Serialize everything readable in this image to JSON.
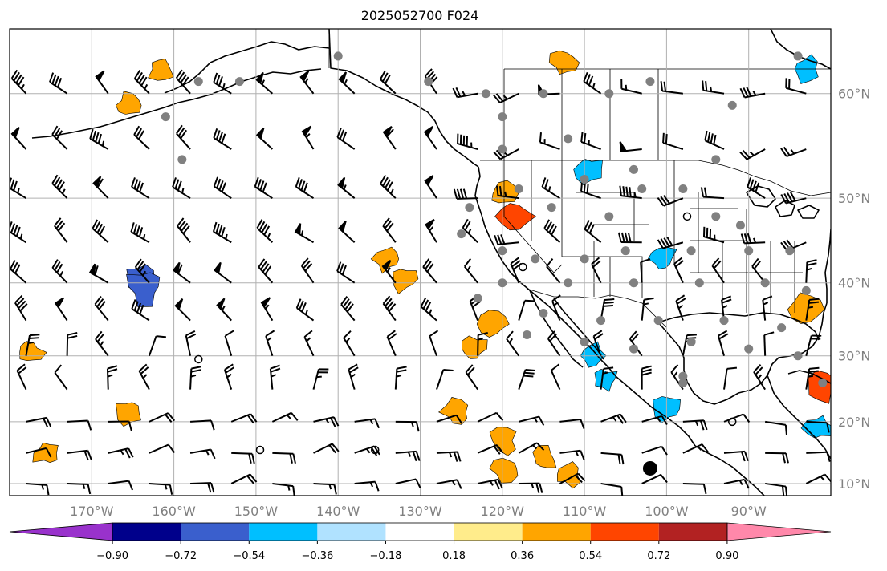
{
  "chart_data": {
    "type": "map",
    "title": "2025052700 F024",
    "projection": "Mercator",
    "extent": {
      "lon": [
        -180,
        -80
      ],
      "lat": [
        8,
        65
      ]
    },
    "longitude_ticks": [
      {
        "lon": -170,
        "label": "170°W"
      },
      {
        "lon": -160,
        "label": "160°W"
      },
      {
        "lon": -150,
        "label": "150°W"
      },
      {
        "lon": -140,
        "label": "140°W"
      },
      {
        "lon": -130,
        "label": "130°W"
      },
      {
        "lon": -120,
        "label": "120°W"
      },
      {
        "lon": -110,
        "label": "110°W"
      },
      {
        "lon": -100,
        "label": "100°W"
      },
      {
        "lon": -90,
        "label": "90°W"
      }
    ],
    "latitude_ticks": [
      {
        "lat": 60,
        "label": "60°N"
      },
      {
        "lat": 50,
        "label": "50°N"
      },
      {
        "lat": 40,
        "label": "40°N"
      },
      {
        "lat": 30,
        "label": "30°N"
      },
      {
        "lat": 20,
        "label": "20°N"
      },
      {
        "lat": 10,
        "label": "10°N"
      }
    ],
    "grid": true,
    "colorbar": {
      "orientation": "horizontal",
      "extend": "both",
      "levels": [
        -0.9,
        -0.72,
        -0.54,
        -0.36,
        -0.18,
        0.18,
        0.36,
        0.54,
        0.72,
        0.9
      ],
      "tick_labels": [
        "−0.90",
        "−0.72",
        "−0.54",
        "−0.36",
        "−0.18",
        "0.18",
        "0.36",
        "0.54",
        "0.72",
        "0.90"
      ],
      "colors": [
        "#9932cc",
        "#00008b",
        "#3a5fcd",
        "#00bfff",
        "#b0e2ff",
        "#ffffff",
        "#ffec8b",
        "#ffa500",
        "#ff4500",
        "#b22222",
        "#ff88aa"
      ]
    },
    "shaded_regions": [
      {
        "lon": -165.5,
        "lat": 59.0,
        "value": 0.4
      },
      {
        "lon": -164.0,
        "lat": 40.5,
        "value": -0.6
      },
      {
        "lon": -163.5,
        "lat": 39.5,
        "value": -0.7
      },
      {
        "lon": -132.0,
        "lat": 40.5,
        "value": 0.4
      },
      {
        "lon": -134.0,
        "lat": 43.0,
        "value": 0.4
      },
      {
        "lon": -120.0,
        "lat": 50.5,
        "value": 0.45
      },
      {
        "lon": -118.5,
        "lat": 48.0,
        "value": 0.6
      },
      {
        "lon": -121.0,
        "lat": 34.5,
        "value": 0.4
      },
      {
        "lon": -123.5,
        "lat": 31.0,
        "value": 0.4
      },
      {
        "lon": -125.5,
        "lat": 21.5,
        "value": 0.45
      },
      {
        "lon": -120.0,
        "lat": 17.0,
        "value": 0.45
      },
      {
        "lon": -115.0,
        "lat": 14.0,
        "value": 0.4
      },
      {
        "lon": -109.0,
        "lat": 30.0,
        "value": -0.45
      },
      {
        "lon": -107.5,
        "lat": 26.5,
        "value": -0.4
      },
      {
        "lon": -109.5,
        "lat": 53.0,
        "value": -0.45
      },
      {
        "lon": -100.5,
        "lat": 43.0,
        "value": -0.45
      },
      {
        "lon": -100.0,
        "lat": 22.0,
        "value": -0.4
      },
      {
        "lon": -83.0,
        "lat": 36.5,
        "value": 0.5
      },
      {
        "lon": -81.0,
        "lat": 25.5,
        "value": 0.55
      },
      {
        "lon": -81.5,
        "lat": 19.0,
        "value": -0.4
      },
      {
        "lon": -175.5,
        "lat": 15.0,
        "value": 0.4
      },
      {
        "lon": -165.5,
        "lat": 21.5,
        "value": 0.4
      },
      {
        "lon": -177.5,
        "lat": 30.5,
        "value": 0.4
      },
      {
        "lon": -161.5,
        "lat": 62.0,
        "value": 0.4
      },
      {
        "lon": -112.0,
        "lat": 11.5,
        "value": 0.4
      },
      {
        "lon": -119.5,
        "lat": 12.5,
        "value": 0.4
      },
      {
        "lon": -83.0,
        "lat": 62.0,
        "value": -0.4
      },
      {
        "lon": -112.5,
        "lat": 62.5,
        "value": 0.4
      }
    ],
    "station_markers_lonlat": [
      [
        -161,
        58
      ],
      [
        -157,
        61
      ],
      [
        -152,
        61
      ],
      [
        -159,
        54
      ],
      [
        -140,
        63
      ],
      [
        -129,
        61
      ],
      [
        -122,
        60
      ],
      [
        -120,
        58
      ],
      [
        -115,
        60
      ],
      [
        -107,
        60
      ],
      [
        -102,
        61
      ],
      [
        -92,
        59
      ],
      [
        -84,
        63
      ],
      [
        -120,
        55
      ],
      [
        -112,
        56
      ],
      [
        -104,
        53
      ],
      [
        -94,
        54
      ],
      [
        -98,
        51
      ],
      [
        -103,
        51
      ],
      [
        -110,
        52
      ],
      [
        -118,
        51
      ],
      [
        -124,
        49
      ],
      [
        -114,
        49
      ],
      [
        -107,
        48
      ],
      [
        -120,
        44
      ],
      [
        -116,
        43
      ],
      [
        -110,
        43
      ],
      [
        -105,
        44
      ],
      [
        -97,
        44
      ],
      [
        -90,
        44
      ],
      [
        -85,
        44
      ],
      [
        -120,
        40
      ],
      [
        -112,
        40
      ],
      [
        -104,
        40
      ],
      [
        -96,
        40
      ],
      [
        -88,
        40
      ],
      [
        -83,
        39
      ],
      [
        -115,
        36
      ],
      [
        -108,
        35
      ],
      [
        -101,
        35
      ],
      [
        -93,
        35
      ],
      [
        -86,
        34
      ],
      [
        -117,
        33
      ],
      [
        -110,
        32
      ],
      [
        -104,
        31
      ],
      [
        -97,
        32
      ],
      [
        -90,
        31
      ],
      [
        -84,
        30
      ],
      [
        -98,
        26
      ],
      [
        -98,
        27
      ],
      [
        -81,
        26
      ],
      [
        -94,
        48
      ],
      [
        -91,
        47
      ],
      [
        -123,
        38
      ],
      [
        -125,
        46
      ]
    ],
    "open_circles_lonlat": [
      [
        -157,
        29.5
      ],
      [
        -149.5,
        15.5
      ],
      [
        -135.5,
        15.5
      ],
      [
        -117.5,
        42
      ],
      [
        -97.5,
        48
      ],
      [
        -92,
        20
      ]
    ],
    "filled_circle_lonlat": [
      -102,
      12.5
    ],
    "wind_barbs": {
      "spacing_deg": 5,
      "style": "standard",
      "units": "knots"
    }
  }
}
